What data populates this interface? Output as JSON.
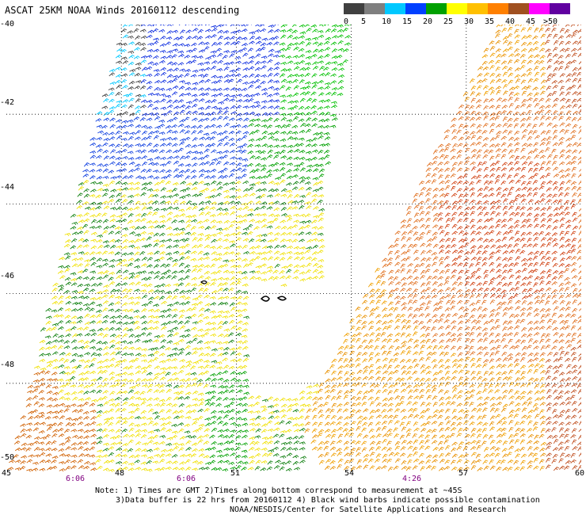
{
  "header": {
    "title": "ASCAT 25KM NOAA Winds 20160112 descending"
  },
  "legend": {
    "labels": [
      "0",
      "5",
      "10",
      "15",
      "20",
      "25",
      "30",
      "35",
      "40",
      "45",
      ">50 knots"
    ],
    "colors": [
      "#404040",
      "#7f7f7f",
      "#00c8ff",
      "#0040ff",
      "#00a000",
      "#ffff00",
      "#ffc000",
      "#ff8000",
      "#a05020",
      "#ff00ff",
      "#6000a0"
    ]
  },
  "map": {
    "lat_labels": [
      "-40",
      "-42",
      "-44",
      "-46",
      "-48",
      "-50"
    ],
    "lon_labels": [
      "45",
      "48",
      "51",
      "54",
      "57",
      "60"
    ],
    "time_labels": [
      "6:06",
      "6:06",
      "4:26"
    ]
  },
  "notes": {
    "line1": "Note: 1) Times are GMT 2)Times along bottom correspond to measurement at ~45S",
    "line2": "3)Data buffer is 22 hrs from 20160112 4) Black wind barbs indicate possible contamination",
    "line3": "NOAA/NESDIS/Center for Satellite Applications and Research"
  }
}
